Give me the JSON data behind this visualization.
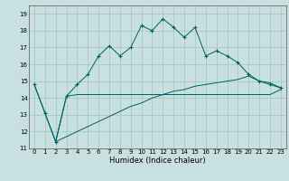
{
  "title": "",
  "xlabel": "Humidex (Indice chaleur)",
  "xlim": [
    -0.5,
    23.5
  ],
  "ylim": [
    11,
    19.5
  ],
  "yticks": [
    11,
    12,
    13,
    14,
    15,
    16,
    17,
    18,
    19
  ],
  "xticks": [
    0,
    1,
    2,
    3,
    4,
    5,
    6,
    7,
    8,
    9,
    10,
    11,
    12,
    13,
    14,
    15,
    16,
    17,
    18,
    19,
    20,
    21,
    22,
    23
  ],
  "background_color": "#c8e0e0",
  "grid_color": "#a0c4c4",
  "line_color": "#006060",
  "line1_x": [
    0,
    1,
    2,
    3,
    4,
    5,
    6,
    7,
    8,
    9,
    10,
    11,
    12,
    13,
    14,
    15,
    16,
    17,
    18,
    19,
    20,
    21,
    22,
    23
  ],
  "line1_y": [
    14.8,
    13.1,
    11.4,
    14.1,
    14.2,
    14.2,
    14.2,
    14.2,
    14.2,
    14.2,
    14.2,
    14.2,
    14.2,
    14.2,
    14.2,
    14.2,
    14.2,
    14.2,
    14.2,
    14.2,
    14.2,
    14.2,
    14.2,
    14.5
  ],
  "line2_x": [
    0,
    1,
    2,
    3,
    4,
    5,
    6,
    7,
    8,
    9,
    10,
    11,
    12,
    13,
    14,
    15,
    16,
    17,
    18,
    19,
    20,
    21,
    22,
    23
  ],
  "line2_y": [
    14.8,
    13.1,
    11.4,
    14.1,
    14.8,
    15.4,
    16.5,
    17.1,
    16.5,
    17.0,
    18.3,
    18.0,
    18.7,
    18.2,
    17.6,
    18.2,
    16.5,
    16.8,
    16.5,
    16.1,
    15.4,
    15.0,
    14.8,
    14.6
  ],
  "line3_x": [
    2,
    3,
    4,
    5,
    6,
    7,
    8,
    9,
    10,
    11,
    12,
    13,
    14,
    15,
    16,
    17,
    18,
    19,
    20,
    21,
    22,
    23
  ],
  "line3_y": [
    11.4,
    11.7,
    12.0,
    12.3,
    12.6,
    12.9,
    13.2,
    13.5,
    13.7,
    14.0,
    14.2,
    14.4,
    14.5,
    14.7,
    14.8,
    14.9,
    15.0,
    15.1,
    15.3,
    15.0,
    14.9,
    14.6
  ],
  "xlabel_fontsize": 6,
  "tick_fontsize": 5
}
